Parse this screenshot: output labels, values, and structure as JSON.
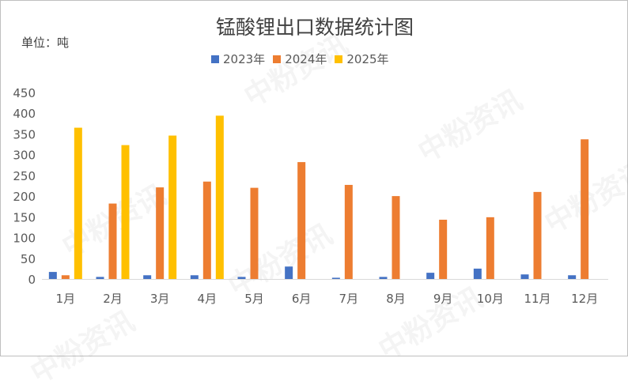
{
  "watermark": "中粉资讯",
  "chart_data": {
    "type": "bar",
    "title": "锰酸锂出口数据统计图",
    "unit_label": "单位：吨",
    "categories": [
      "1月",
      "2月",
      "3月",
      "4月",
      "5月",
      "6月",
      "7月",
      "8月",
      "9月",
      "10月",
      "11月",
      "12月"
    ],
    "series": [
      {
        "name": "2023年",
        "color": "#4472c4",
        "values": [
          17,
          5,
          9,
          9,
          5,
          30,
          3,
          5,
          15,
          25,
          11,
          9
        ]
      },
      {
        "name": "2024年",
        "color": "#ed7d31",
        "values": [
          9,
          182,
          221,
          235,
          220,
          282,
          227,
          200,
          143,
          149,
          210,
          337
        ]
      },
      {
        "name": "2025年",
        "color": "#ffc000",
        "values": [
          365,
          323,
          346,
          394,
          null,
          null,
          null,
          null,
          null,
          null,
          null,
          null
        ]
      }
    ],
    "ylim": [
      0,
      450
    ],
    "yticks": [
      0,
      50,
      100,
      150,
      200,
      250,
      300,
      350,
      400,
      450
    ],
    "grid": false,
    "legend_position": "top-center"
  }
}
